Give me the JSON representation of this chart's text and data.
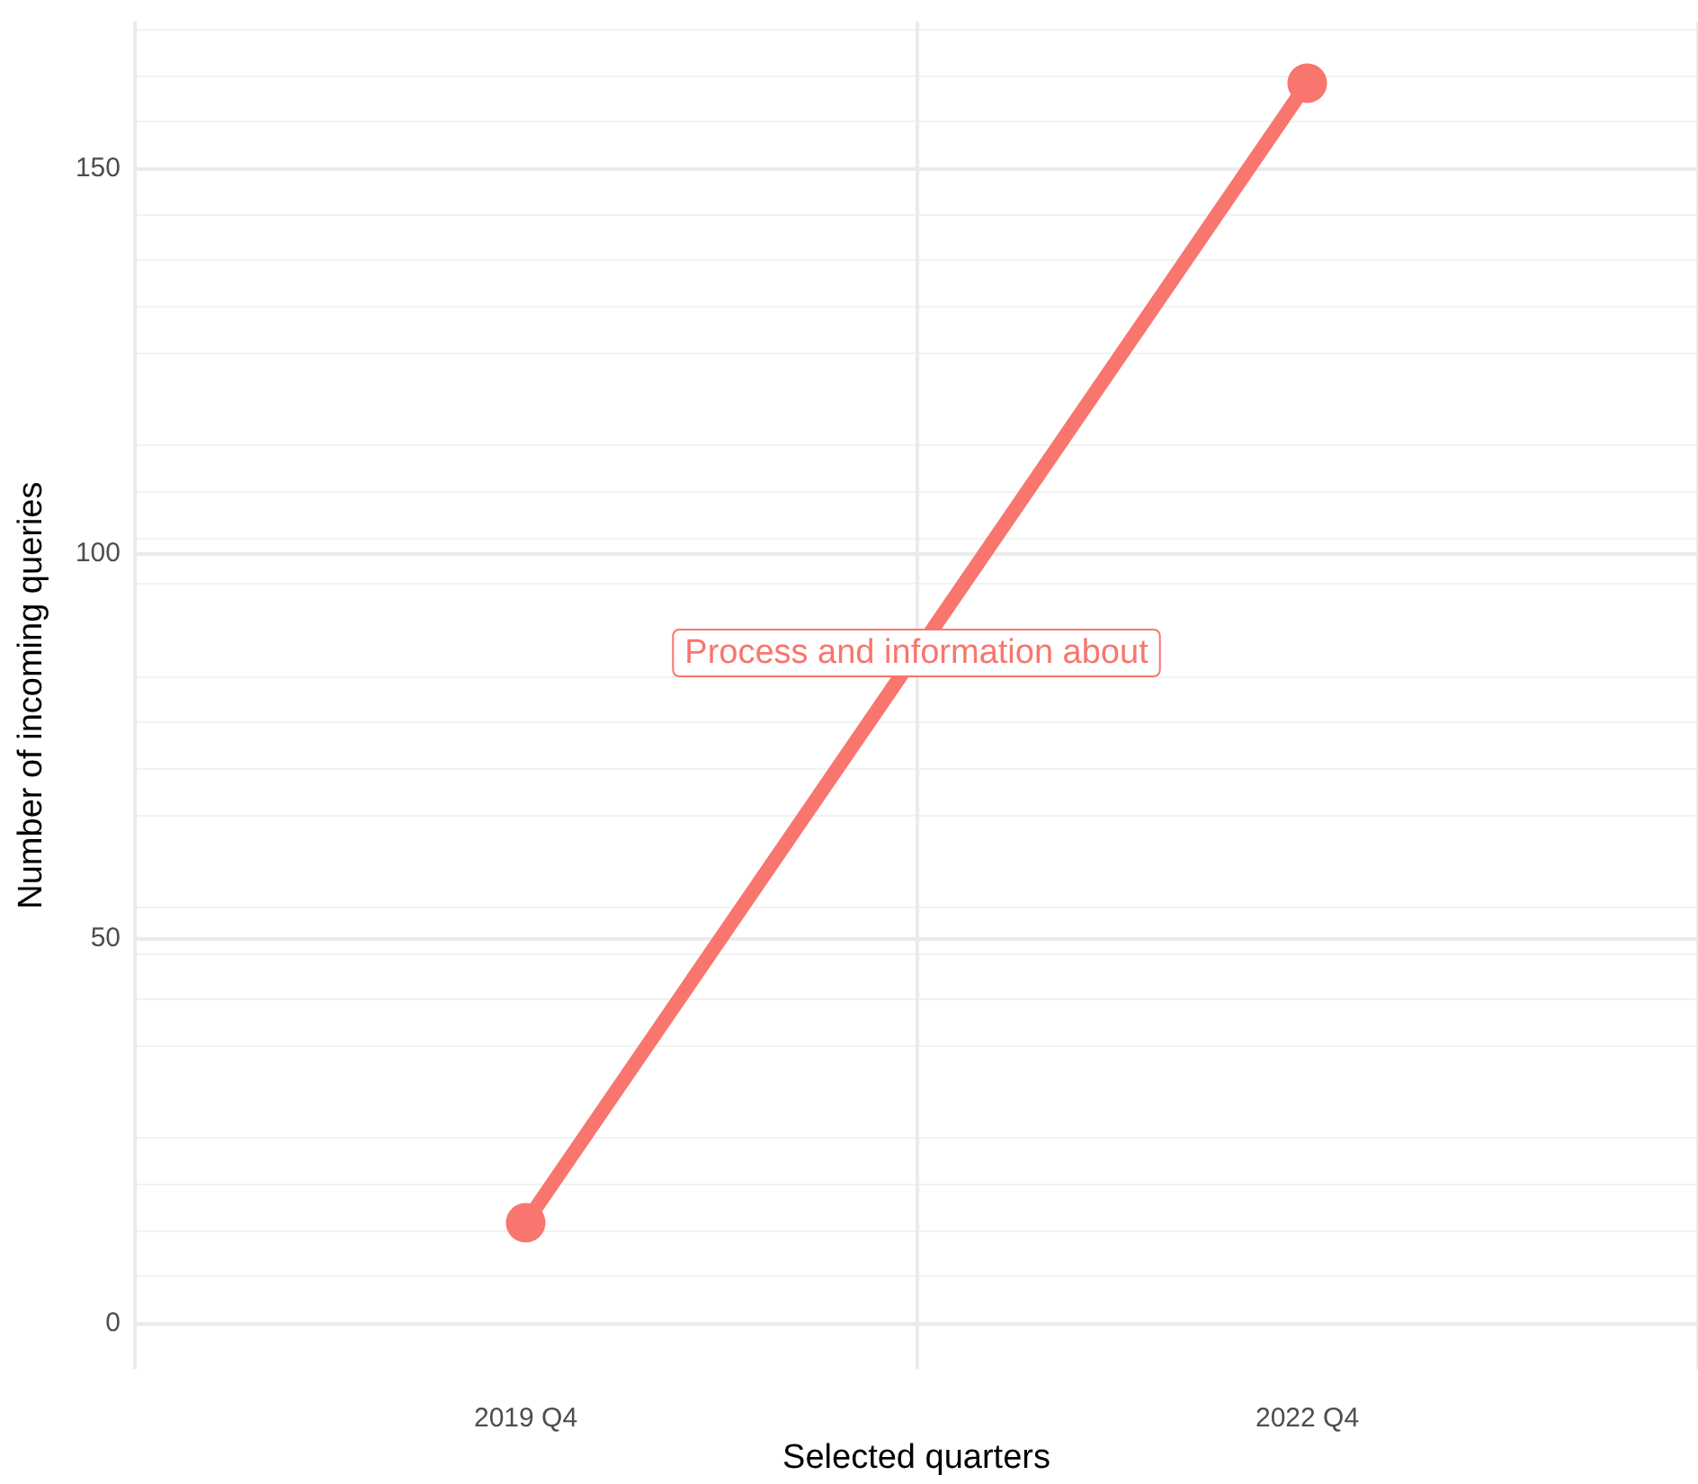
{
  "chart_data": {
    "type": "line",
    "xlabel": "Selected quarters",
    "ylabel": "Number of incoming queries",
    "categories": [
      "2019 Q4",
      "2022 Q4"
    ],
    "series": [
      {
        "name": "Process and information about",
        "color": "#f8766d",
        "values": [
          13,
          161
        ]
      }
    ],
    "ylim": [
      -6,
      169
    ],
    "yticks": [
      0,
      50,
      100,
      150
    ],
    "grid": true,
    "marker": "circle",
    "line_style": "solid"
  }
}
